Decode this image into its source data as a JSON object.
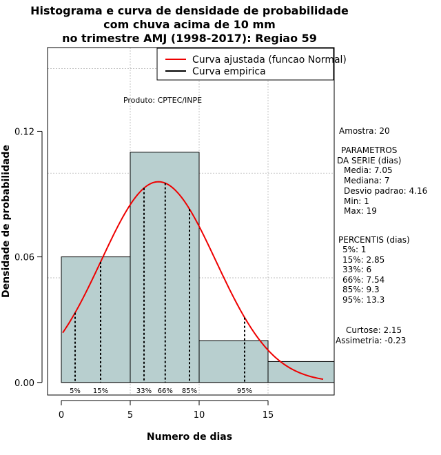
{
  "chart_data": {
    "type": "bar",
    "title_lines": [
      "Histograma e curva de densidade de probabilidade",
      "com chuva acima de 10 mm",
      "no trimestre AMJ (1998-2017): Regiao 59"
    ],
    "xlabel": "Numero de dias",
    "ylabel": "Densidade de probabilidade",
    "xlim": [
      -1,
      19.8
    ],
    "ylim": [
      -0.006,
      0.16
    ],
    "x_ticks": [
      0,
      5,
      10,
      15
    ],
    "y_ticks": [
      0.0,
      0.06,
      0.12
    ],
    "y_tick_labels": [
      "0.00",
      "0.06",
      "0.12"
    ],
    "grid": true,
    "bins": [
      {
        "x0": 0,
        "x1": 5,
        "density": 0.06
      },
      {
        "x0": 5,
        "x1": 10,
        "density": 0.11
      },
      {
        "x0": 10,
        "x1": 15,
        "density": 0.02
      },
      {
        "x0": 15,
        "x1": 20,
        "density": 0.01
      }
    ],
    "normal_curve": {
      "mean": 7.05,
      "sd": 4.16,
      "x_from": 0.1,
      "x_to": 19
    },
    "percentile_lines": [
      {
        "label": "5%",
        "x": 1
      },
      {
        "label": "15%",
        "x": 2.85
      },
      {
        "label": "33%",
        "x": 6
      },
      {
        "label": "66%",
        "x": 7.54
      },
      {
        "label": "85%",
        "x": 9.3
      },
      {
        "label": "95%",
        "x": 13.3
      }
    ],
    "legend": {
      "position": "top-right",
      "entries": [
        {
          "label": "Curva ajustada (funcao Normal)",
          "color": "#ee0000"
        },
        {
          "label": "Curva empirica",
          "color": "#000000"
        }
      ]
    },
    "annotation": "Produto: CPTEC/INPE"
  },
  "stats": {
    "amostra": "Amostra: 20",
    "param_header": [
      "PARAMETROS",
      "DA SERIE (dias)"
    ],
    "params": [
      "Media: 7.05",
      "Mediana: 7",
      "Desvio padrao: 4.16",
      "Min: 1",
      "Max: 19"
    ],
    "percentis_header": "PERCENTIS (dias)",
    "percentis": [
      "5%: 1",
      "15%: 2.85",
      "33%: 6",
      "66%: 7.54",
      "85%: 9.3",
      "95%: 13.3"
    ],
    "curtose": "Curtose: 2.15",
    "assimetria": "Assimetria: -0.23"
  },
  "colors": {
    "bar_fill": "#b8cfcf",
    "curve": "#ee0000",
    "grid": "#aaaaaa"
  }
}
